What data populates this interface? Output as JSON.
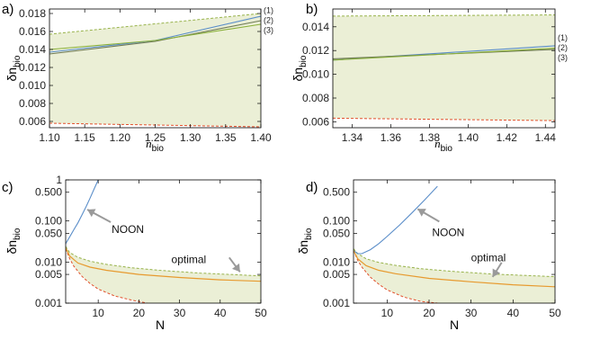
{
  "colors": {
    "band": "#ebefd6",
    "upper_bound": "#97b24a",
    "lower_bound": "#e2502c",
    "series_1": "#5b8ec9",
    "series_2": "#6f7a55",
    "series_3": "#8bb13c",
    "noon": "#5b8ec9",
    "optimal": "#e79a2f",
    "arrow": "#9a9a9a"
  },
  "chart_data": [
    {
      "panel": "a)",
      "type": "line",
      "ylabel": "δn",
      "ylabel_sub": "bio",
      "xlabel": "n",
      "xlabel_sub": "bio",
      "xlim": [
        1.1,
        1.4
      ],
      "ylim": [
        0.0053,
        0.0185
      ],
      "x_ticks": [
        1.1,
        1.15,
        1.2,
        1.25,
        1.3,
        1.35,
        1.4
      ],
      "x_tick_labels": [
        "1.10",
        "1.15",
        "1.20",
        "1.25",
        "1.30",
        "1.35",
        "1.40"
      ],
      "y_ticks": [
        0.006,
        0.008,
        0.01,
        0.012,
        0.014,
        0.016,
        0.018
      ],
      "y_tick_labels": [
        "0.006",
        "0.008",
        "0.010",
        "0.012",
        "0.014",
        "0.016",
        "0.018"
      ],
      "bands": [
        {
          "upper": "Upper bound",
          "lower": "Lower bound"
        }
      ],
      "series": [
        {
          "key": "upper",
          "name": "",
          "x": [
            1.1,
            1.4
          ],
          "values": [
            0.0157,
            0.018
          ]
        },
        {
          "key": "lower",
          "name": "",
          "x": [
            1.1,
            1.4
          ],
          "values": [
            0.0058,
            0.0054
          ]
        },
        {
          "key": "s1",
          "name": "(1)",
          "x": [
            1.1,
            1.25,
            1.4
          ],
          "values": [
            0.0137,
            0.015,
            0.0177
          ]
        },
        {
          "key": "s2",
          "name": "(2)",
          "x": [
            1.1,
            1.25,
            1.4
          ],
          "values": [
            0.0135,
            0.0149,
            0.0172
          ]
        },
        {
          "key": "s3",
          "name": "(3)",
          "x": [
            1.1,
            1.25,
            1.4
          ],
          "values": [
            0.014,
            0.015,
            0.0168
          ]
        }
      ]
    },
    {
      "panel": "b)",
      "type": "line",
      "ylabel": "δn",
      "ylabel_sub": "bio",
      "xlabel": "n",
      "xlabel_sub": "bio",
      "xlim": [
        1.33,
        1.445
      ],
      "ylim": [
        0.0055,
        0.0155
      ],
      "x_ticks": [
        1.34,
        1.36,
        1.38,
        1.4,
        1.42,
        1.44
      ],
      "x_tick_labels": [
        "1.34",
        "1.36",
        "1.38",
        "1.40",
        "1.42",
        "1.44"
      ],
      "y_ticks": [
        0.006,
        0.008,
        0.01,
        0.012,
        0.014
      ],
      "y_tick_labels": [
        "0.006",
        "0.008",
        "0.010",
        "0.012",
        "0.014"
      ],
      "series": [
        {
          "key": "upper",
          "name": "",
          "x": [
            1.33,
            1.445
          ],
          "values": [
            0.0149,
            0.015
          ]
        },
        {
          "key": "lower",
          "name": "",
          "x": [
            1.33,
            1.445
          ],
          "values": [
            0.0063,
            0.0061
          ]
        },
        {
          "key": "s1",
          "name": "(1)",
          "x": [
            1.33,
            1.445
          ],
          "values": [
            0.0112,
            0.0124
          ]
        },
        {
          "key": "s2",
          "name": "(2)",
          "x": [
            1.33,
            1.445
          ],
          "values": [
            0.0113,
            0.0121
          ]
        },
        {
          "key": "s3",
          "name": "(3)",
          "x": [
            1.33,
            1.445
          ],
          "values": [
            0.0112,
            0.0122
          ]
        }
      ]
    },
    {
      "panel": "c)",
      "type": "line",
      "yscale": "log",
      "ylabel": "δn",
      "ylabel_sub": "bio",
      "xlabel": "N",
      "xlim": [
        2,
        50
      ],
      "ylim": [
        0.001,
        1
      ],
      "x_ticks": [
        10,
        20,
        30,
        40,
        50
      ],
      "x_tick_labels": [
        "10",
        "20",
        "30",
        "40",
        "50"
      ],
      "y_ticks": [
        0.001,
        0.005,
        0.01,
        0.05,
        0.1,
        0.5,
        1
      ],
      "y_tick_labels": [
        "0.001",
        "0.005",
        "0.010",
        "0.050",
        "0.100",
        "0.500",
        "1"
      ],
      "annotations": [
        {
          "text": "NOON"
        },
        {
          "text": "optimal"
        }
      ],
      "series": [
        {
          "key": "upper",
          "name": "",
          "x": [
            2,
            3,
            5,
            8,
            12,
            18,
            25,
            35,
            50
          ],
          "values": [
            0.024,
            0.017,
            0.013,
            0.0105,
            0.0088,
            0.0073,
            0.0063,
            0.0054,
            0.0046
          ]
        },
        {
          "key": "lower",
          "name": "",
          "x": [
            2,
            3,
            4,
            6,
            8,
            10,
            14,
            18,
            22
          ],
          "values": [
            0.021,
            0.012,
            0.008,
            0.0045,
            0.003,
            0.0022,
            0.0015,
            0.0012,
            0.001
          ]
        },
        {
          "key": "noon",
          "name": "NOON",
          "x": [
            2,
            3,
            4,
            5,
            6,
            7,
            8,
            9,
            10
          ],
          "values": [
            0.028,
            0.041,
            0.061,
            0.09,
            0.14,
            0.22,
            0.36,
            0.6,
            1
          ]
        },
        {
          "key": "optimal",
          "name": "optimal",
          "x": [
            2,
            3,
            5,
            8,
            12,
            20,
            30,
            40,
            50
          ],
          "values": [
            0.022,
            0.014,
            0.0095,
            0.0075,
            0.0063,
            0.005,
            0.0042,
            0.0037,
            0.0034
          ]
        }
      ]
    },
    {
      "panel": "d)",
      "type": "line",
      "yscale": "log",
      "ylabel": "δn",
      "ylabel_sub": "bio",
      "xlabel": "N",
      "xlim": [
        2,
        50
      ],
      "ylim": [
        0.001,
        1
      ],
      "x_ticks": [
        10,
        20,
        30,
        40,
        50
      ],
      "x_tick_labels": [
        "10",
        "20",
        "30",
        "40",
        "50"
      ],
      "y_ticks": [
        0.001,
        0.005,
        0.01,
        0.05,
        0.1,
        0.5
      ],
      "y_tick_labels": [
        "0.001",
        "0.005",
        "0.010",
        "0.050",
        "0.100",
        "0.500"
      ],
      "annotations": [
        {
          "text": "NOON"
        },
        {
          "text": "optimal"
        }
      ],
      "series": [
        {
          "key": "upper",
          "name": "",
          "x": [
            2,
            3,
            5,
            8,
            12,
            18,
            25,
            35,
            50
          ],
          "values": [
            0.021,
            0.016,
            0.012,
            0.0098,
            0.0083,
            0.0069,
            0.006,
            0.0051,
            0.0044
          ]
        },
        {
          "key": "lower",
          "name": "",
          "x": [
            2,
            3,
            4,
            6,
            8,
            10,
            14,
            18,
            22
          ],
          "values": [
            0.019,
            0.011,
            0.0075,
            0.0043,
            0.0029,
            0.0021,
            0.0014,
            0.0011,
            0.001
          ]
        },
        {
          "key": "noon",
          "name": "NOON",
          "x": [
            2,
            3,
            4,
            6,
            8,
            10,
            13,
            16,
            19,
            22
          ],
          "values": [
            0.019,
            0.016,
            0.016,
            0.02,
            0.028,
            0.042,
            0.08,
            0.16,
            0.33,
            0.7
          ]
        },
        {
          "key": "optimal",
          "name": "optimal",
          "x": [
            2,
            3,
            5,
            8,
            12,
            20,
            30,
            40,
            50
          ],
          "values": [
            0.019,
            0.012,
            0.0082,
            0.0063,
            0.0052,
            0.004,
            0.0033,
            0.0028,
            0.0025
          ]
        }
      ]
    }
  ]
}
